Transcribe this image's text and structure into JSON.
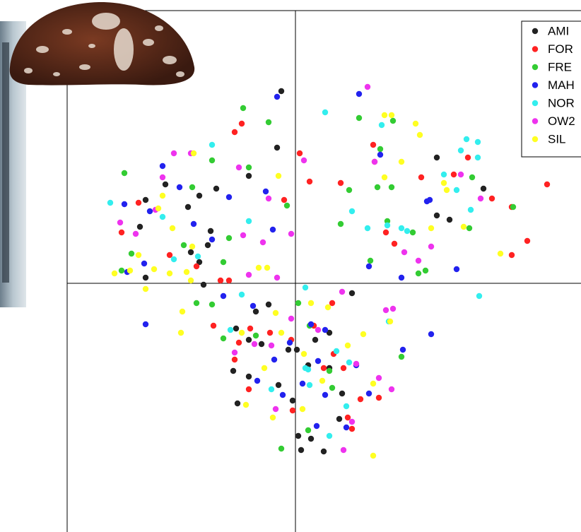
{
  "chart_data": {
    "type": "scatter",
    "xlim": [
      -16.15,
      20.2
    ],
    "ylim": [
      -17.6,
      19.3
    ],
    "legend": "topright",
    "series": [
      {
        "name": "AMI",
        "color": "#222222",
        "x": [
          -1,
          -1.3,
          -3.3,
          -5.6,
          -6.8,
          -9.2,
          -10.6,
          -11,
          -7.6,
          -6,
          -6.2,
          -7.4,
          -6.8,
          -10.6,
          -6.5,
          10,
          13.3,
          10,
          10.9,
          4,
          -1.9,
          -2.8,
          -4.2,
          -3.3,
          -2.4,
          -0.5,
          0.1,
          1.4,
          2.4,
          -4.4,
          -3.3,
          -1.2,
          -0.2,
          -4.1,
          3.3,
          3.1,
          0.2,
          1.1,
          2,
          0.4,
          2.4,
          0.9
        ],
        "y": [
          13.6,
          9.6,
          7.6,
          6.7,
          6.2,
          7,
          5.9,
          4,
          5.4,
          3.7,
          2.7,
          2.2,
          1.5,
          0.4,
          -0.1,
          8.9,
          6.7,
          4.8,
          4.5,
          -0.7,
          -1.5,
          -2,
          -3.2,
          -4,
          -4.3,
          -4.7,
          -4.7,
          -4,
          -3.5,
          -6.2,
          -6.6,
          -7.2,
          -8.3,
          -8.5,
          -7.8,
          -9.6,
          -10.8,
          -11,
          -11.9,
          -11.8,
          -6,
          -5.8
        ]
      },
      {
        "name": "FOR",
        "color": "#ff2222",
        "x": [
          -4.3,
          -3.8,
          0.3,
          1,
          -0.8,
          5.5,
          5.6,
          3.2,
          8.9,
          11.2,
          12.2,
          13.9,
          15.3,
          17.8,
          16.4,
          15.3,
          7,
          6.4,
          -11.1,
          -12.3,
          -8.9,
          -7,
          -5.3,
          -4.7,
          -5.8,
          -4,
          -3.2,
          -1.8,
          -0.3,
          1.3,
          2.6,
          2.7,
          2,
          3.4,
          -3.3,
          -0.2,
          4.6,
          5.9,
          3.7,
          4,
          -4.3
        ],
        "y": [
          10.7,
          11.3,
          9.2,
          7.2,
          5.9,
          9.8,
          8.6,
          7.1,
          7.5,
          7.7,
          8.9,
          6,
          5.4,
          7,
          3,
          2,
          2.8,
          3.6,
          5.7,
          3.6,
          2,
          1.2,
          0.2,
          0.2,
          -3,
          -4.2,
          -3.2,
          -3.5,
          -4,
          -3,
          -1.4,
          -5,
          -6,
          -6,
          -7.5,
          -9,
          -8.2,
          -8.1,
          -9.5,
          -10.3,
          -5.4
        ]
      },
      {
        "name": "FRE",
        "color": "#33cc33",
        "x": [
          -3.7,
          -1.9,
          -5.9,
          -12.1,
          -7.3,
          -3.3,
          -0.6,
          -4.7,
          -7.9,
          -11.6,
          -12.3,
          -5.1,
          -7,
          -5.9,
          4.5,
          6.9,
          6,
          3.8,
          5.8,
          6.8,
          12.5,
          15.4,
          12.3,
          6.5,
          3.2,
          8.3,
          9.2,
          8.7,
          5.3,
          0.2,
          1,
          -5.1,
          2.4,
          2.6,
          0.9,
          -1,
          7.5,
          -2.8
        ],
        "y": [
          12.4,
          11.4,
          8.7,
          7.8,
          6.8,
          8.2,
          5.5,
          3.2,
          2.7,
          2.1,
          0.9,
          1.5,
          -1.4,
          -1.5,
          11.7,
          11.5,
          9.5,
          6.6,
          6.8,
          6.8,
          7.5,
          5.4,
          3.9,
          4.4,
          4.2,
          3.6,
          0.9,
          0.7,
          1.6,
          -1.4,
          -3,
          -3.9,
          -6.2,
          -7.4,
          -10.4,
          -11.7,
          -5.2,
          -3.7
        ]
      },
      {
        "name": "MAH",
        "color": "#2222ee",
        "x": [
          -1.3,
          4.5,
          -9.4,
          -8.2,
          -10.3,
          -12.1,
          -4.7,
          -2.1,
          -1.6,
          -7.2,
          -5.9,
          -10.7,
          -11.9,
          -10.6,
          6,
          9.3,
          9.5,
          5.2,
          7.5,
          11.4,
          9.6,
          7.6,
          -5.1,
          -3,
          1.1,
          2.1,
          -1.5,
          -0.4,
          1.6,
          4.3,
          5.2,
          2.1,
          1.5,
          3.6,
          -2.7,
          0.5,
          -0.9
        ],
        "y": [
          13.2,
          13.4,
          8.3,
          6.8,
          5.1,
          5.6,
          6.1,
          6.5,
          3.8,
          4.2,
          3.1,
          1.4,
          0.8,
          -2.9,
          9.1,
          5.8,
          5.9,
          1.2,
          0.4,
          1,
          -3.6,
          -4.7,
          -0.9,
          -1.6,
          -2.9,
          -3.3,
          -5.4,
          -4.2,
          -5.5,
          -5.8,
          -7.8,
          -7.9,
          -10.1,
          -10.2,
          -6.9,
          -7.1,
          -7.9
        ]
      },
      {
        "name": "NOR",
        "color": "#33eeee",
        "x": [
          -13.1,
          -5.9,
          -9.4,
          -3.3,
          -6.9,
          -8.6,
          2.1,
          6.1,
          12.1,
          12.9,
          11.7,
          12.9,
          10.5,
          11.4,
          12.4,
          4,
          5.1,
          6.5,
          7.5,
          7.9,
          13,
          0.7,
          -3.8,
          -4.6,
          0.7,
          2.9,
          3.8,
          -1.7,
          1,
          3.6,
          2.4,
          0.9,
          6.6
        ],
        "y": [
          5.7,
          9.8,
          4.7,
          4.4,
          1.9,
          1.7,
          12.1,
          11.2,
          10.2,
          10,
          9.4,
          8.9,
          7.7,
          6.6,
          5.2,
          5.1,
          3.9,
          4.1,
          3.9,
          3.7,
          -0.9,
          -0.3,
          -0.8,
          -3.3,
          -6,
          -4.8,
          -5.6,
          -7.5,
          -7.2,
          -8.7,
          -10.8,
          -6.1,
          -2.7
        ]
      },
      {
        "name": "OW2",
        "color": "#ee33ee",
        "x": [
          5.1,
          -8.6,
          -7.4,
          -9.4,
          -4,
          -1.9,
          -12.4,
          -11.3,
          -9.9,
          -3.7,
          -2.3,
          -0.3,
          -1.3,
          0.6,
          5.6,
          11.7,
          13.1,
          7.7,
          8.7,
          9.6,
          -3.3,
          3.3,
          6.4,
          6.9,
          -0.3,
          -1.7,
          1.6,
          4.3,
          6.8,
          5.9,
          -1.4,
          4,
          3.4,
          -2.9,
          -4.3
        ],
        "y": [
          13.9,
          9.2,
          9.2,
          7.5,
          8.2,
          6,
          4.3,
          3.5,
          5.2,
          3.4,
          2.9,
          3.5,
          0.4,
          8.7,
          8.6,
          7.7,
          6,
          2.2,
          1.6,
          2.6,
          0.6,
          -0.6,
          -1.9,
          -1.8,
          -2.5,
          -4.4,
          -3.3,
          -5.7,
          -7.5,
          -6.7,
          -8.9,
          -9.8,
          -11.8,
          -4.3,
          -4.9
        ]
      },
      {
        "name": "SIL",
        "color": "#ffff22",
        "x": [
          -1.2,
          -7.2,
          -9.4,
          -9.7,
          -8.7,
          -11.1,
          -12.8,
          -11.7,
          -10,
          -8.9,
          -7.7,
          -7.4,
          -2.6,
          -2,
          -7.3,
          -10.6,
          -8,
          -8.1,
          6.3,
          6.8,
          8.5,
          8.8,
          7.5,
          6.3,
          10.5,
          10.7,
          9.6,
          11.9,
          14.5,
          1.1,
          2.3,
          -1.4,
          -3.8,
          -2.2,
          -1,
          4.8,
          3.7,
          0.6,
          1.9,
          0.5,
          -1.6,
          -3.5,
          5.5,
          5.5,
          6.7
        ],
        "y": [
          7.6,
          9.2,
          6.2,
          5.3,
          3.9,
          2,
          0.7,
          0.9,
          1,
          0.7,
          0.8,
          0.2,
          1.1,
          1.1,
          2.6,
          -0.4,
          -2,
          -3.5,
          11.9,
          11.9,
          11.3,
          10.5,
          8.6,
          7.5,
          7.1,
          6.6,
          3.9,
          4,
          2.1,
          -1.4,
          -1.7,
          -2.1,
          -3.5,
          -6,
          -3.5,
          -3.6,
          -4.4,
          -5,
          -6.9,
          -8.9,
          -9.5,
          -8.6,
          -12.2,
          -7.1,
          -2.7
        ]
      }
    ]
  }
}
